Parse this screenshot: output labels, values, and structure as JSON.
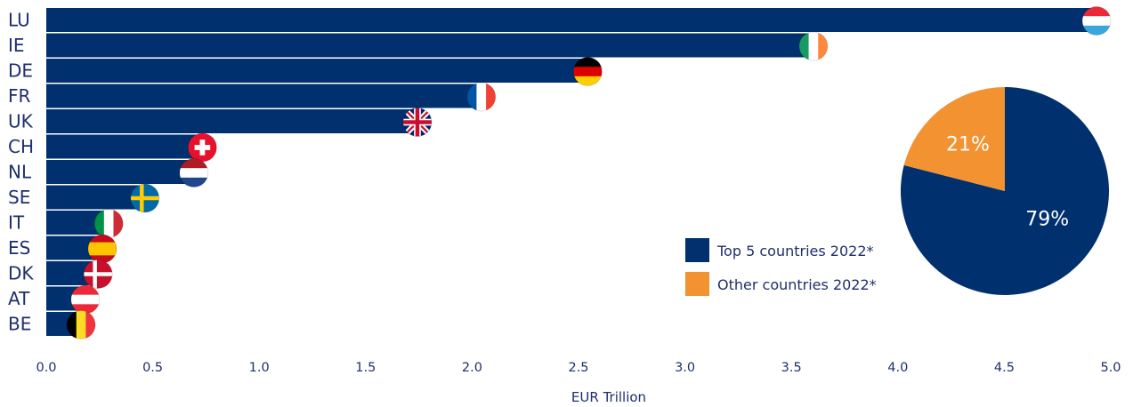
{
  "chart_data": [
    {
      "type": "bar",
      "orientation": "horizontal",
      "categories": [
        "LU",
        "IE",
        "DE",
        "FR",
        "UK",
        "CH",
        "NL",
        "SE",
        "IT",
        "ES",
        "DK",
        "AT",
        "BE"
      ],
      "values": [
        4.95,
        3.62,
        2.56,
        2.06,
        1.76,
        0.75,
        0.71,
        0.48,
        0.31,
        0.28,
        0.26,
        0.2,
        0.18
      ],
      "flag_icons": [
        "flag-lu-icon",
        "flag-ie-icon",
        "flag-de-icon",
        "flag-fr-icon",
        "flag-uk-icon",
        "flag-ch-icon",
        "flag-nl-icon",
        "flag-se-icon",
        "flag-it-icon",
        "flag-es-icon",
        "flag-dk-icon",
        "flag-at-icon",
        "flag-be-icon"
      ],
      "xlabel": "EUR Trillion",
      "xlim": [
        0,
        5
      ],
      "xticks": [
        "0.0",
        "0.5",
        "1.0",
        "1.5",
        "2.0",
        "2.5",
        "3.0",
        "3.5",
        "4.0",
        "4.5",
        "5.0"
      ],
      "bar_color": "#00306e",
      "grid": false
    },
    {
      "type": "pie",
      "slices": [
        {
          "name": "Top 5 countries 2022*",
          "value": 79,
          "label": "79%",
          "color": "#00306e"
        },
        {
          "name": "Other countries 2022*",
          "value": 21,
          "label": "21%",
          "color": "#f39230"
        }
      ],
      "legend_position": "left of pie"
    }
  ]
}
